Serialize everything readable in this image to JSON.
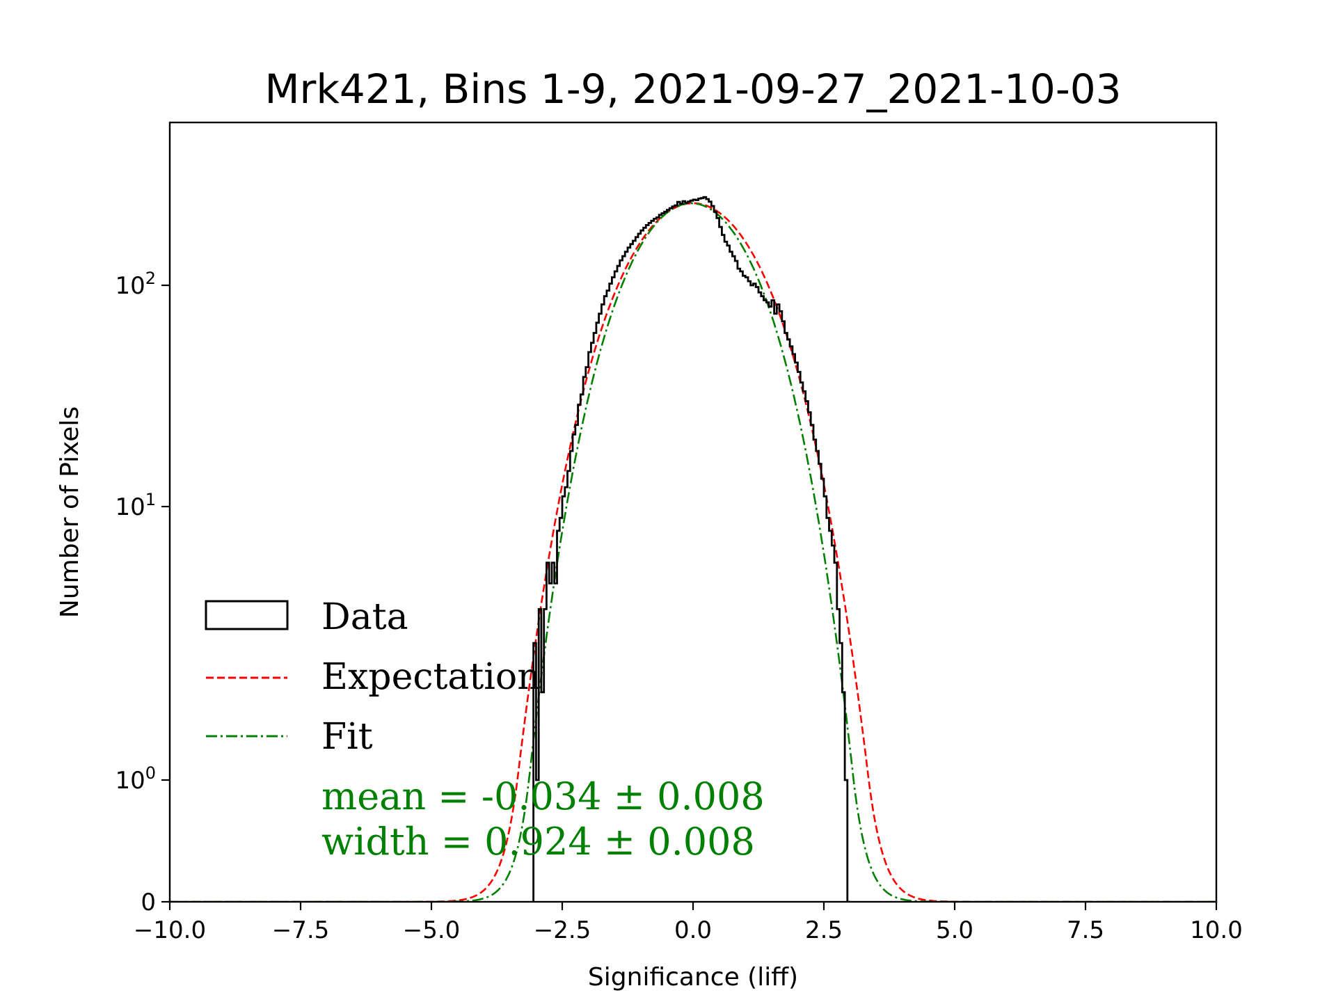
{
  "chart_data": {
    "type": "histogram",
    "title": "Mrk421, Bins 1-9, 2021-09-27_2021-10-03",
    "xlabel": "Significance (liff)",
    "ylabel": "Number of Pixels",
    "xlim": [
      -10,
      10
    ],
    "yscale": "symlog",
    "xticks": [
      -10.0,
      -7.5,
      -5.0,
      -2.5,
      0.0,
      2.5,
      5.0,
      7.5,
      10.0
    ],
    "xtick_labels": [
      "−10.0",
      "−7.5",
      "−5.0",
      "−2.5",
      "0.0",
      "2.5",
      "5.0",
      "7.5",
      "10.0"
    ],
    "yticks": [
      0,
      1,
      10,
      100
    ],
    "ytick_labels": [
      {
        "base": "0",
        "exp": ""
      },
      {
        "base": "10",
        "exp": "0"
      },
      {
        "base": "10",
        "exp": "1"
      },
      {
        "base": "10",
        "exp": "2"
      }
    ],
    "legend": {
      "placement": "center-left",
      "entries": [
        {
          "label": "Data",
          "style": "histogram-outline",
          "color": "#000000"
        },
        {
          "label": "Expectation",
          "style": "dashed",
          "color": "#ff0000"
        },
        {
          "label": "Fit",
          "style": "dash-dot",
          "color": "#008000"
        }
      ]
    },
    "annotation": {
      "lines": [
        "mean = -0.034 ± 0.008",
        "width = 0.924 ± 0.008"
      ],
      "color": "#008000"
    },
    "series": [
      {
        "name": "Expectation",
        "kind": "gaussian",
        "mean": 0.0,
        "sigma": 1.0,
        "peak": 280,
        "color": "#ff0000"
      },
      {
        "name": "Fit",
        "kind": "gaussian",
        "mean": -0.034,
        "sigma": 0.924,
        "peak": 280,
        "color": "#008000"
      },
      {
        "name": "Data",
        "kind": "step-histogram",
        "color": "#000000",
        "x_range": [
          -3.2,
          3.0
        ],
        "bins": [
          [
            -3.05,
            3
          ],
          [
            -3.0,
            1
          ],
          [
            -2.95,
            4
          ],
          [
            -2.9,
            2
          ],
          [
            -2.85,
            4
          ],
          [
            -2.8,
            6
          ],
          [
            -2.75,
            5
          ],
          [
            -2.7,
            6
          ],
          [
            -2.65,
            5
          ],
          [
            -2.6,
            8
          ],
          [
            -2.55,
            9
          ],
          [
            -2.5,
            11
          ],
          [
            -2.45,
            12
          ],
          [
            -2.4,
            14
          ],
          [
            -2.35,
            17
          ],
          [
            -2.3,
            20
          ],
          [
            -2.25,
            22
          ],
          [
            -2.2,
            27
          ],
          [
            -2.15,
            30
          ],
          [
            -2.1,
            36
          ],
          [
            -2.05,
            40
          ],
          [
            -2.0,
            47
          ],
          [
            -1.95,
            52
          ],
          [
            -1.9,
            58
          ],
          [
            -1.85,
            65
          ],
          [
            -1.8,
            72
          ],
          [
            -1.75,
            80
          ],
          [
            -1.7,
            88
          ],
          [
            -1.65,
            94
          ],
          [
            -1.6,
            102
          ],
          [
            -1.55,
            110
          ],
          [
            -1.5,
            118
          ],
          [
            -1.45,
            126
          ],
          [
            -1.4,
            135
          ],
          [
            -1.35,
            142
          ],
          [
            -1.3,
            150
          ],
          [
            -1.25,
            158
          ],
          [
            -1.2,
            165
          ],
          [
            -1.15,
            172
          ],
          [
            -1.1,
            180
          ],
          [
            -1.05,
            188
          ],
          [
            -1.0,
            196
          ],
          [
            -0.95,
            203
          ],
          [
            -0.9,
            210
          ],
          [
            -0.85,
            216
          ],
          [
            -0.8,
            222
          ],
          [
            -0.75,
            228
          ],
          [
            -0.7,
            232
          ],
          [
            -0.65,
            240
          ],
          [
            -0.6,
            245
          ],
          [
            -0.55,
            250
          ],
          [
            -0.5,
            256
          ],
          [
            -0.45,
            262
          ],
          [
            -0.4,
            268
          ],
          [
            -0.35,
            272
          ],
          [
            -0.3,
            285
          ],
          [
            -0.25,
            278
          ],
          [
            -0.2,
            288
          ],
          [
            -0.15,
            282
          ],
          [
            -0.1,
            286
          ],
          [
            -0.05,
            290
          ],
          [
            0.0,
            294
          ],
          [
            0.05,
            292
          ],
          [
            0.1,
            298
          ],
          [
            0.15,
            300
          ],
          [
            0.2,
            304
          ],
          [
            0.25,
            296
          ],
          [
            0.3,
            286
          ],
          [
            0.35,
            270
          ],
          [
            0.4,
            250
          ],
          [
            0.45,
            230
          ],
          [
            0.5,
            205
          ],
          [
            0.55,
            185
          ],
          [
            0.6,
            170
          ],
          [
            0.65,
            162
          ],
          [
            0.7,
            150
          ],
          [
            0.75,
            142
          ],
          [
            0.8,
            134
          ],
          [
            0.85,
            122
          ],
          [
            0.9,
            118
          ],
          [
            0.95,
            112
          ],
          [
            1.0,
            110
          ],
          [
            1.05,
            105
          ],
          [
            1.1,
            100
          ],
          [
            1.15,
            102
          ],
          [
            1.2,
            98
          ],
          [
            1.25,
            92
          ],
          [
            1.3,
            88
          ],
          [
            1.35,
            84
          ],
          [
            1.4,
            82
          ],
          [
            1.45,
            78
          ],
          [
            1.5,
            84
          ],
          [
            1.55,
            72
          ],
          [
            1.6,
            80
          ],
          [
            1.65,
            74
          ],
          [
            1.7,
            66
          ],
          [
            1.75,
            58
          ],
          [
            1.8,
            54
          ],
          [
            1.85,
            50
          ],
          [
            1.9,
            46
          ],
          [
            1.95,
            42
          ],
          [
            2.0,
            38
          ],
          [
            2.05,
            34
          ],
          [
            2.1,
            31
          ],
          [
            2.15,
            28
          ],
          [
            2.2,
            25
          ],
          [
            2.25,
            22
          ],
          [
            2.3,
            19
          ],
          [
            2.35,
            17
          ],
          [
            2.4,
            15
          ],
          [
            2.45,
            13
          ],
          [
            2.5,
            11
          ],
          [
            2.55,
            9
          ],
          [
            2.6,
            8
          ],
          [
            2.65,
            7
          ],
          [
            2.7,
            6
          ],
          [
            2.75,
            4
          ],
          [
            2.8,
            3
          ],
          [
            2.85,
            2
          ],
          [
            2.9,
            1
          ],
          [
            2.95,
            0
          ]
        ]
      }
    ]
  }
}
